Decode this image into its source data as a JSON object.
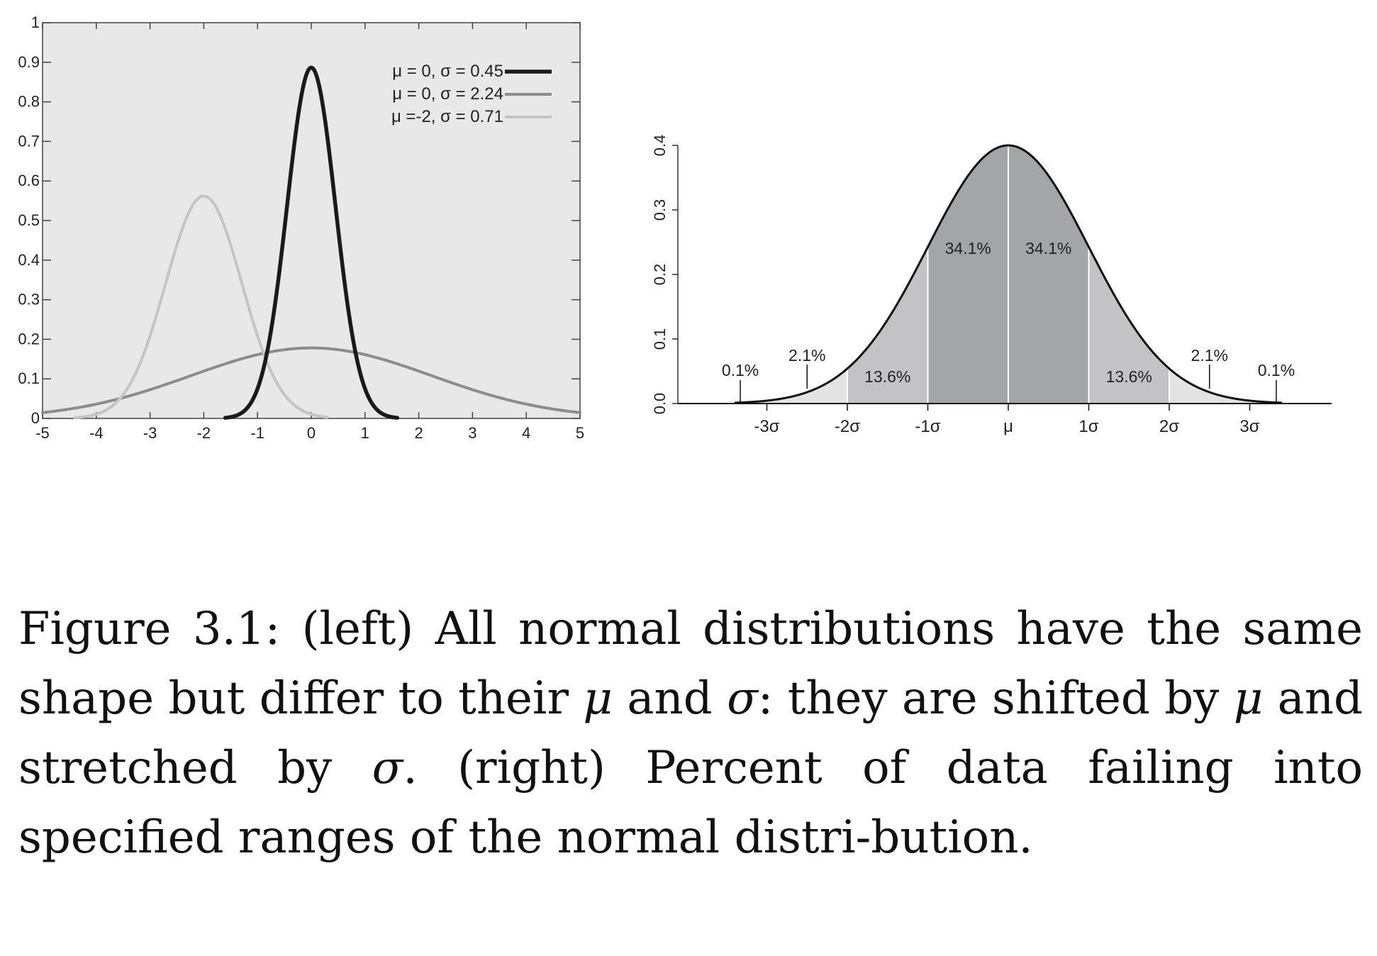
{
  "left_chart": {
    "x_ticks": [
      "-5",
      "-4",
      "-3",
      "-2",
      "-1",
      "0",
      "1",
      "2",
      "3",
      "4",
      "5"
    ],
    "y_ticks": [
      "0",
      "0.1",
      "0.2",
      "0.3",
      "0.4",
      "0.5",
      "0.6",
      "0.7",
      "0.8",
      "0.9",
      "1"
    ],
    "legend": [
      "μ = 0, σ  = 0.45",
      "μ = 0, σ  = 2.24",
      "μ =-2, σ  = 0.71"
    ]
  },
  "right_chart": {
    "y_ticks": [
      "0.0",
      "0.1",
      "0.2",
      "0.3",
      "0.4"
    ],
    "x_ticks": [
      "-3σ",
      "-2σ",
      "-1σ",
      "μ",
      "1σ",
      "2σ",
      "3σ"
    ],
    "region_labels": [
      "0.1%",
      "2.1%",
      "13.6%",
      "34.1%",
      "34.1%",
      "13.6%",
      "2.1%",
      "0.1%"
    ]
  },
  "chart_data": [
    {
      "type": "line",
      "xlim": [
        -5,
        5
      ],
      "ylim": [
        0,
        1
      ],
      "grid": false,
      "legend_placement": "top-right",
      "series": [
        {
          "name": "μ = 0, σ  = 0.45",
          "mu": 0,
          "sigma": 0.45,
          "color": "#1a1a1a",
          "x": [
            -1.6,
            -1.2,
            -0.8,
            -0.4,
            0,
            0.4,
            0.8,
            1.2,
            1.6
          ],
          "y": [
            0.003,
            0.025,
            0.18,
            0.6,
            0.89,
            0.6,
            0.18,
            0.025,
            0.003
          ]
        },
        {
          "name": "μ = 0, σ  = 2.24",
          "mu": 0,
          "sigma": 2.24,
          "color": "#8c8c8c",
          "x": [
            -5,
            -4,
            -3,
            -2,
            -1,
            0,
            1,
            2,
            3,
            4,
            5
          ],
          "y": [
            0.015,
            0.036,
            0.073,
            0.121,
            0.161,
            0.178,
            0.161,
            0.121,
            0.073,
            0.036,
            0.015
          ]
        },
        {
          "name": "μ =-2, σ  = 0.71",
          "mu": -2,
          "sigma": 0.71,
          "color": "#c4c4c4",
          "x": [
            -4.4,
            -4,
            -3,
            -2.5,
            -2,
            -1.5,
            -1,
            0,
            0.3
          ],
          "y": [
            0.001,
            0.004,
            0.19,
            0.44,
            0.56,
            0.44,
            0.19,
            0.004,
            0.001
          ]
        }
      ]
    },
    {
      "type": "area",
      "ylim": [
        0,
        0.4
      ],
      "grid": false,
      "curve": "standard normal density",
      "x": [
        -3.5,
        -3,
        -2.5,
        -2,
        -1.5,
        -1,
        -0.5,
        0,
        0.5,
        1,
        1.5,
        2,
        2.5,
        3,
        3.5
      ],
      "y": [
        0.001,
        0.004,
        0.018,
        0.054,
        0.13,
        0.242,
        0.352,
        0.399,
        0.352,
        0.242,
        0.13,
        0.054,
        0.018,
        0.004,
        0.001
      ],
      "regions": [
        {
          "range": [
            "-3σ",
            "-2σ"
          ],
          "percent": "2.1%"
        },
        {
          "range": [
            "-2σ",
            "-1σ"
          ],
          "percent": "13.6%"
        },
        {
          "range": [
            "-1σ",
            "μ"
          ],
          "percent": "34.1%"
        },
        {
          "range": [
            "μ",
            "1σ"
          ],
          "percent": "34.1%"
        },
        {
          "range": [
            "1σ",
            "2σ"
          ],
          "percent": "13.6%"
        },
        {
          "range": [
            "2σ",
            "3σ"
          ],
          "percent": "2.1%"
        },
        {
          "range": [
            "<-3σ"
          ],
          "percent": "0.1%"
        },
        {
          "range": [
            ">3σ"
          ],
          "percent": "0.1%"
        }
      ]
    }
  ],
  "caption": {
    "part1": "Figure 3.1:  (left) All normal distributions have the same shape but differ to their ",
    "mu1": "μ",
    "part2": " and ",
    "sigma1": "σ",
    "part3": ":  they are shifted by ",
    "mu2": "μ",
    "part4": " and stretched by ",
    "sigma2": "σ",
    "part5": ".  (right) Percent of data failing into specified ranges of the normal distri-bution."
  }
}
